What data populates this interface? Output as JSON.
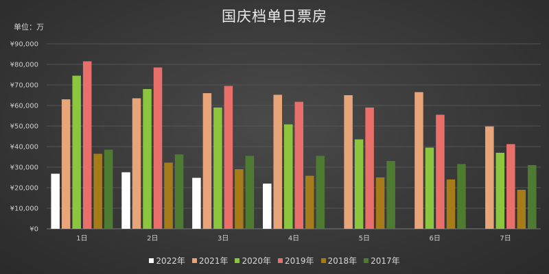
{
  "chart_data": {
    "type": "bar",
    "title": "国庆档单日票房",
    "unit_label": "单位：万",
    "categories": [
      "1日",
      "2日",
      "3日",
      "4日",
      "5日",
      "6日",
      "7日"
    ],
    "ylim": [
      0,
      90000
    ],
    "yticks": [
      "¥0",
      "¥10,000",
      "¥20,000",
      "¥30,000",
      "¥40,000",
      "¥50,000",
      "¥60,000",
      "¥70,000",
      "¥80,000",
      "¥90,000"
    ],
    "grid": true,
    "legend_position": "bottom",
    "series": [
      {
        "name": "2022年",
        "color": "#ffffff",
        "values": [
          26800,
          27500,
          24800,
          22000,
          null,
          null,
          null
        ]
      },
      {
        "name": "2021年",
        "color": "#e8a57a",
        "values": [
          63000,
          63500,
          66000,
          65200,
          65000,
          66500,
          49800
        ]
      },
      {
        "name": "2020年",
        "color": "#8cc63f",
        "values": [
          74500,
          68000,
          59000,
          50800,
          43500,
          39500,
          37000
        ]
      },
      {
        "name": "2019年",
        "color": "#e96f6a",
        "values": [
          81500,
          78500,
          69500,
          61800,
          59000,
          55500,
          41200
        ]
      },
      {
        "name": "2018年",
        "color": "#a67c1a",
        "values": [
          36500,
          32200,
          29000,
          25800,
          25000,
          24000,
          19000
        ]
      },
      {
        "name": "2017年",
        "color": "#4f7a32",
        "values": [
          38500,
          36200,
          35500,
          35500,
          33000,
          31500,
          31000
        ]
      }
    ]
  }
}
